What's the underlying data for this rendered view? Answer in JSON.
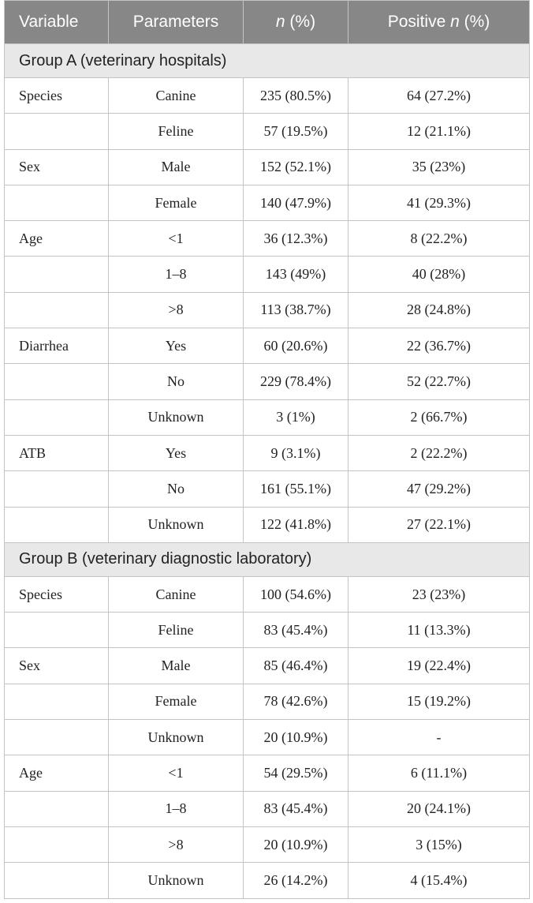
{
  "table": {
    "header": [
      [
        "Variable"
      ],
      [
        "Parameters"
      ],
      [
        "n",
        " (%)"
      ],
      [
        "Positive ",
        "n",
        " (%)"
      ]
    ],
    "header_italic": [
      [
        false
      ],
      [
        false
      ],
      [
        true,
        false
      ],
      [
        false,
        true,
        false
      ]
    ],
    "groups": [
      {
        "title": "Group A (veterinary hospitals)",
        "rows": [
          [
            "Species",
            "Canine",
            "235 (80.5%)",
            "64 (27.2%)"
          ],
          [
            null,
            "Feline",
            "57 (19.5%)",
            "12 (21.1%)"
          ],
          [
            "Sex",
            "Male",
            "152 (52.1%)",
            "35 (23%)"
          ],
          [
            null,
            "Female",
            "140 (47.9%)",
            "41 (29.3%)"
          ],
          [
            "Age",
            "<1",
            "36 (12.3%)",
            "8 (22.2%)"
          ],
          [
            null,
            "1–8",
            "143 (49%)",
            "40 (28%)"
          ],
          [
            null,
            ">8",
            "113 (38.7%)",
            "28 (24.8%)"
          ],
          [
            "Diarrhea",
            "Yes",
            "60 (20.6%)",
            "22 (36.7%)"
          ],
          [
            null,
            "No",
            "229 (78.4%)",
            "52 (22.7%)"
          ],
          [
            null,
            "Unknown",
            "3 (1%)",
            "2 (66.7%)"
          ],
          [
            "ATB",
            "Yes",
            "9 (3.1%)",
            "2 (22.2%)"
          ],
          [
            null,
            "No",
            "161 (55.1%)",
            "47 (29.2%)"
          ],
          [
            null,
            "Unknown",
            "122 (41.8%)",
            "27 (22.1%)"
          ]
        ]
      },
      {
        "title": "Group B (veterinary diagnostic laboratory)",
        "rows": [
          [
            "Species",
            "Canine",
            "100 (54.6%)",
            "23 (23%)"
          ],
          [
            null,
            "Feline",
            "83 (45.4%)",
            "11 (13.3%)"
          ],
          [
            "Sex",
            "Male",
            "85 (46.4%)",
            "19 (22.4%)"
          ],
          [
            null,
            "Female",
            "78 (42.6%)",
            "15 (19.2%)"
          ],
          [
            null,
            "Unknown",
            "20 (10.9%)",
            "-"
          ],
          [
            "Age",
            "<1",
            "54 (29.5%)",
            "6 (11.1%)"
          ],
          [
            null,
            "1–8",
            "83 (45.4%)",
            "20 (24.1%)"
          ],
          [
            null,
            ">8",
            "20 (10.9%)",
            "3 (15%)"
          ],
          [
            null,
            "Unknown",
            "26 (14.2%)",
            "4 (15.4%)"
          ]
        ]
      }
    ]
  }
}
